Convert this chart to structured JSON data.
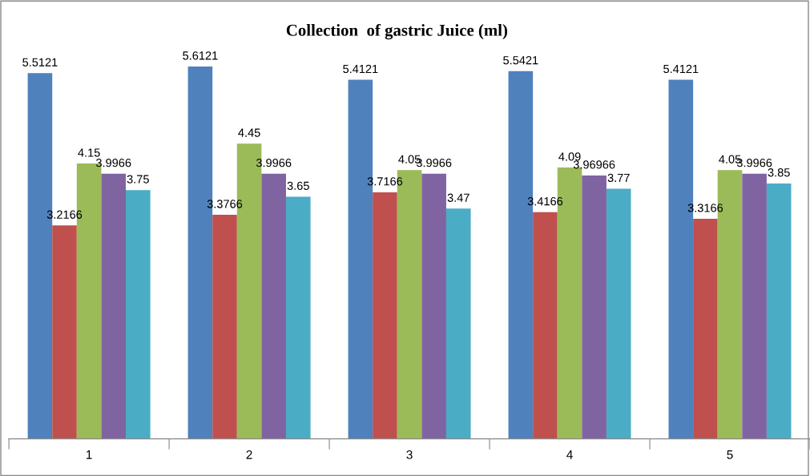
{
  "chart_data": {
    "type": "bar",
    "title": "Collection  of gastric Juice (ml)",
    "categories": [
      "1",
      "2",
      "3",
      "4",
      "5"
    ],
    "series": [
      {
        "color": "#4f81bd",
        "values": [
          5.5121,
          5.6121,
          5.4121,
          5.5421,
          5.4121
        ]
      },
      {
        "color": "#c0504d",
        "values": [
          3.2166,
          3.3766,
          3.7166,
          3.4166,
          3.3166
        ]
      },
      {
        "color": "#9bbb59",
        "values": [
          4.15,
          4.45,
          4.05,
          4.09,
          4.05
        ]
      },
      {
        "color": "#8064a2",
        "values": [
          3.9966,
          3.9966,
          3.9966,
          3.96966,
          3.9966
        ]
      },
      {
        "color": "#4bacc6",
        "values": [
          3.75,
          3.65,
          3.47,
          3.77,
          3.85
        ]
      }
    ],
    "data_labels": true,
    "grid": false,
    "legend": false
  }
}
